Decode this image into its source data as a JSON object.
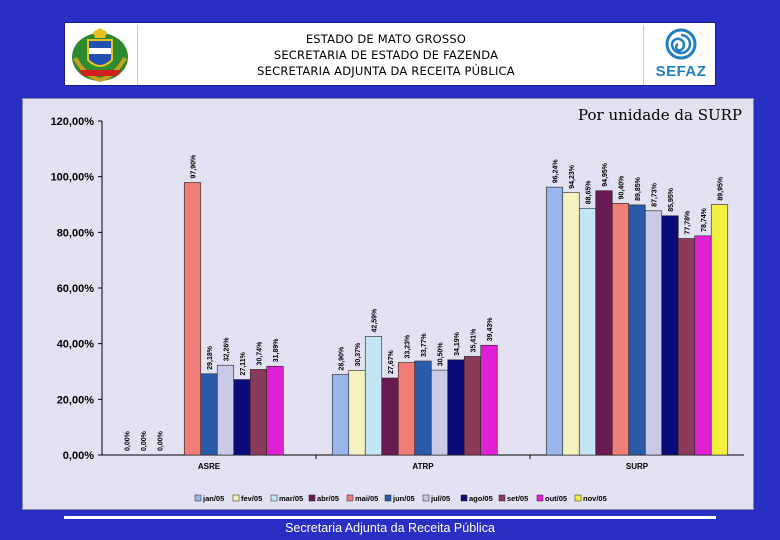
{
  "header": {
    "line1": "ESTADO DE MATO GROSSO",
    "line2": "SECRETARIA DE ESTADO DE FAZENDA",
    "line3": "SECRETARIA ADJUNTA DA RECEITA PÚBLICA",
    "logo_text": "SEFAZ"
  },
  "footer": {
    "text": "Secretaria Adjunta da Receita Pública"
  },
  "chart_data": {
    "type": "bar",
    "title": "Por unidade da SURP",
    "xlabel": "",
    "ylabel": "",
    "ylim": [
      0,
      120
    ],
    "yticks": [
      "0,00%",
      "20,00%",
      "40,00%",
      "60,00%",
      "80,00%",
      "100,00%",
      "120,00%"
    ],
    "grid": false,
    "legend_position": "bottom",
    "categories": [
      "ASRE",
      "ATRP",
      "SURP"
    ],
    "series": [
      {
        "name": "jan/05",
        "color": "#9ab4ec",
        "values": [
          0.0,
          28.9,
          96.24
        ],
        "labels": [
          "0,00%",
          "28,90%",
          "96,24%"
        ]
      },
      {
        "name": "fev/05",
        "color": "#f6f2c0",
        "values": [
          0.0,
          30.37,
          94.23
        ],
        "labels": [
          "0,00%",
          "30,37%",
          "94,23%"
        ]
      },
      {
        "name": "mar/05",
        "color": "#c4e6f4",
        "values": [
          0.0,
          42.59,
          88.65
        ],
        "labels": [
          "0,00%",
          "42,59%",
          "88,65%"
        ]
      },
      {
        "name": "abr/05",
        "color": "#6a1a52",
        "values": [
          null,
          27.67,
          94.95
        ],
        "labels": [
          "",
          "27,67%",
          "94,95%"
        ]
      },
      {
        "name": "mai/05",
        "color": "#f07d78",
        "values": [
          97.9,
          33.23,
          90.4
        ],
        "labels": [
          "97,90%",
          "33,23%",
          "90,40%"
        ]
      },
      {
        "name": "jun/05",
        "color": "#2a5aa8",
        "values": [
          29.18,
          33.77,
          89.85
        ],
        "labels": [
          "29,18%",
          "33,77%",
          "89,85%"
        ]
      },
      {
        "name": "jul/05",
        "color": "#c8cae8",
        "values": [
          32.26,
          30.5,
          87.73
        ],
        "labels": [
          "32,26%",
          "30,50%",
          "87,73%"
        ]
      },
      {
        "name": "ago/05",
        "color": "#0a0a78",
        "values": [
          27.11,
          34.19,
          85.95
        ],
        "labels": [
          "27,11%",
          "34,19%",
          "85,95%"
        ]
      },
      {
        "name": "set/05",
        "color": "#8c3a5c",
        "values": [
          30.74,
          35.41,
          77.78
        ],
        "labels": [
          "30,74%",
          "35,41%",
          "77,78%"
        ]
      },
      {
        "name": "out/05",
        "color": "#e020d4",
        "values": [
          31.89,
          39.43,
          78.74
        ],
        "labels": [
          "31,89%",
          "39,43%",
          "78,74%"
        ]
      },
      {
        "name": "nov/05",
        "color": "#f4f040",
        "values": [
          null,
          null,
          89.95
        ],
        "labels": [
          "",
          "",
          "89,95%"
        ]
      }
    ]
  }
}
